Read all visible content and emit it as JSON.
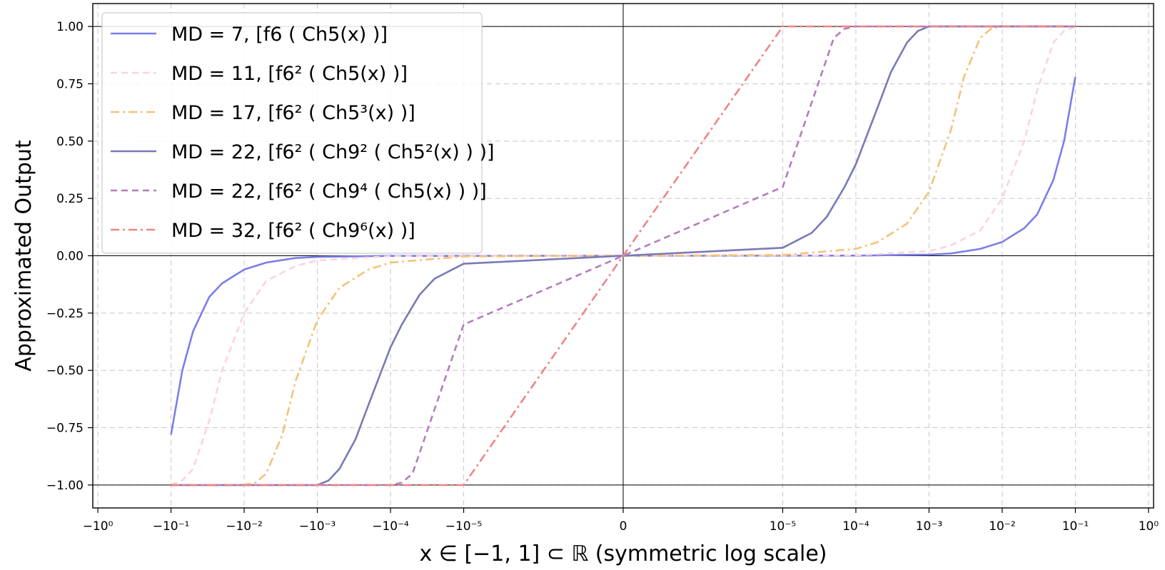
{
  "chart_data": {
    "type": "line",
    "title": "",
    "xlabel": "x ∈ [−1, 1] ⊂ ℝ (symmetric log scale)",
    "ylabel": "Approximated Output",
    "xscale": "symlog",
    "xlim": [
      -1,
      1
    ],
    "ylim": [
      -1.1,
      1.1
    ],
    "grid": true,
    "legend_position": "top-left",
    "x_ticks": [
      {
        "value": -1,
        "label": "−10⁰"
      },
      {
        "value": -0.1,
        "label": "−10⁻¹"
      },
      {
        "value": -0.01,
        "label": "−10⁻²"
      },
      {
        "value": -0.001,
        "label": "−10⁻³"
      },
      {
        "value": -0.0001,
        "label": "−10⁻⁴"
      },
      {
        "value": -1e-05,
        "label": "−10⁻⁵"
      },
      {
        "value": 0,
        "label": "0"
      },
      {
        "value": 1e-05,
        "label": "10⁻⁵"
      },
      {
        "value": 0.0001,
        "label": "10⁻⁴"
      },
      {
        "value": 0.001,
        "label": "10⁻³"
      },
      {
        "value": 0.01,
        "label": "10⁻²"
      },
      {
        "value": 0.1,
        "label": "10⁻¹"
      },
      {
        "value": 1,
        "label": "10⁰"
      }
    ],
    "y_ticks": [
      {
        "value": 1.0,
        "label": "1.00"
      },
      {
        "value": 0.75,
        "label": "0.75"
      },
      {
        "value": 0.5,
        "label": "0.50"
      },
      {
        "value": 0.25,
        "label": "0.25"
      },
      {
        "value": 0.0,
        "label": "0.00"
      },
      {
        "value": -0.25,
        "label": "−0.25"
      },
      {
        "value": -0.5,
        "label": "−0.50"
      },
      {
        "value": -0.75,
        "label": "−0.75"
      },
      {
        "value": -1.0,
        "label": "−1.00"
      }
    ],
    "series": [
      {
        "name": "MD = 7, [f6 ( Ch5(x) )]",
        "color": "#7b7fe8",
        "dash": "solid",
        "x": [
          0,
          0.0001,
          0.001,
          0.002,
          0.005,
          0.01,
          0.02,
          0.03,
          0.05,
          0.07,
          0.1
        ],
        "y": [
          0,
          0.0005,
          0.005,
          0.01,
          0.03,
          0.06,
          0.12,
          0.18,
          0.33,
          0.5,
          0.78
        ]
      },
      {
        "name": "MD = 11, [f6² ( Ch5(x) )]",
        "color": "#fcd3dc",
        "dash": "dashed",
        "x": [
          0,
          0.0001,
          0.001,
          0.002,
          0.005,
          0.01,
          0.02,
          0.03,
          0.05,
          0.07,
          0.1
        ],
        "y": [
          0,
          0.002,
          0.02,
          0.045,
          0.11,
          0.25,
          0.5,
          0.72,
          0.93,
          0.98,
          1.0
        ]
      },
      {
        "name": "MD = 17, [f6² ( Ch5³(x) )]",
        "color": "#f4c27a",
        "dash": "dashdot",
        "x": [
          0,
          1e-05,
          0.0001,
          0.0002,
          0.0005,
          0.001,
          0.002,
          0.003,
          0.005,
          0.007,
          0.01,
          0.1
        ],
        "y": [
          0,
          0.003,
          0.03,
          0.06,
          0.14,
          0.28,
          0.55,
          0.78,
          0.95,
          0.99,
          1.0,
          1.0
        ]
      },
      {
        "name": "MD = 22, [f6² ( Ch9² ( Ch5²(x) ) )]",
        "color": "#7a7ab6",
        "dash": "solid",
        "x": [
          0,
          1e-05,
          2.5e-05,
          4e-05,
          7e-05,
          0.0001,
          0.0002,
          0.0003,
          0.0005,
          0.0007,
          0.001,
          0.1
        ],
        "y": [
          0,
          0.035,
          0.1,
          0.17,
          0.3,
          0.4,
          0.65,
          0.8,
          0.93,
          0.98,
          1.0,
          1.0
        ]
      },
      {
        "name": "MD = 22, [f6² ( Ch9⁴ ( Ch5(x) ) )]",
        "color": "#b57cbe",
        "dash": "dashed",
        "x": [
          0,
          1e-05,
          5e-05,
          7e-05,
          0.0001,
          0.1
        ],
        "y": [
          0,
          0.3,
          0.95,
          0.99,
          1.0,
          1.0
        ]
      },
      {
        "name": "MD = 32, [f6² ( Ch9⁶(x) )]",
        "color": "#ee8586",
        "dash": "dashdot",
        "x": [
          0,
          1e-05,
          0.1
        ],
        "y": [
          0,
          1.0,
          1.0
        ]
      }
    ]
  }
}
